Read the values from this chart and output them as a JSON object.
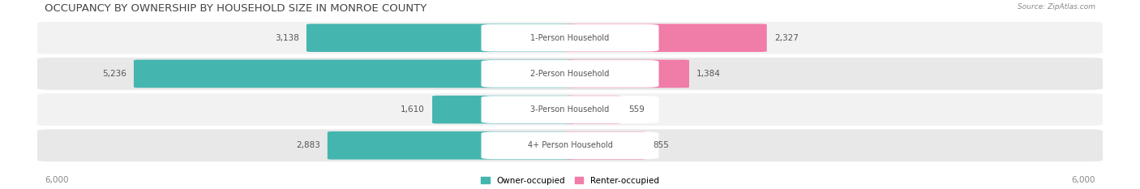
{
  "title": "OCCUPANCY BY OWNERSHIP BY HOUSEHOLD SIZE IN MONROE COUNTY",
  "source": "Source: ZipAtlas.com",
  "categories": [
    "1-Person Household",
    "2-Person Household",
    "3-Person Household",
    "4+ Person Household"
  ],
  "owner_values": [
    3138,
    5236,
    1610,
    2883
  ],
  "renter_values": [
    2327,
    1384,
    559,
    855
  ],
  "owner_color": "#45b5b0",
  "renter_color": "#f07ca8",
  "axis_max": 6000,
  "row_bg_colors": [
    "#f2f2f2",
    "#e8e8e8",
    "#f2f2f2",
    "#e8e8e8"
  ],
  "label_color": "#555555",
  "title_color": "#444444",
  "source_color": "#888888",
  "axis_label_color": "#888888",
  "center_label_color": "#555555",
  "fig_bg_color": "#ffffff",
  "title_fontsize": 9.5,
  "bar_label_fontsize": 7.5,
  "cat_label_fontsize": 7.0,
  "axis_tick_fontsize": 7.5
}
